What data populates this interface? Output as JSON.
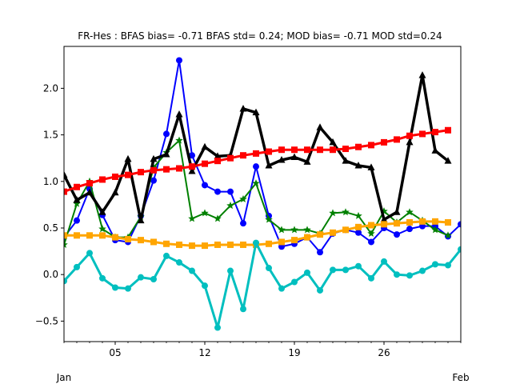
{
  "chart_data": {
    "type": "line",
    "title": "FR-Hes   : BFAS bias= -0.71 BFAS std= 0.24; MOD bias= -0.71 MOD std=0.24",
    "xlabel": "",
    "ylabel": "",
    "x": [
      1,
      2,
      3,
      4,
      5,
      6,
      7,
      8,
      9,
      10,
      11,
      12,
      13,
      14,
      15,
      16,
      17,
      18,
      19,
      20,
      21,
      22,
      23,
      24,
      25,
      26,
      27,
      28,
      29,
      30,
      31,
      32
    ],
    "xlim": [
      1,
      32
    ],
    "ylim": [
      -0.72,
      2.45
    ],
    "x_ticks": [
      {
        "x": 5,
        "label": "05"
      },
      {
        "x": 12,
        "label": "12"
      },
      {
        "x": 19,
        "label": "19"
      },
      {
        "x": 26,
        "label": "26"
      }
    ],
    "y_ticks": [
      {
        "y": -0.5,
        "label": "−0.5"
      },
      {
        "y": 0.0,
        "label": "0.0"
      },
      {
        "y": 0.5,
        "label": "0.5"
      },
      {
        "y": 1.0,
        "label": "1.0"
      },
      {
        "y": 1.5,
        "label": "1.5"
      },
      {
        "y": 2.0,
        "label": "2.0"
      }
    ],
    "month_labels": [
      {
        "x": 1,
        "label": "Jan"
      },
      {
        "x": 32,
        "label": "Feb"
      }
    ],
    "grid": false,
    "legend": "none",
    "series": [
      {
        "color": "#0000ff",
        "marker": "circle",
        "width": 2,
        "values": [
          0.4,
          0.58,
          0.92,
          0.64,
          0.37,
          0.35,
          0.63,
          1.01,
          1.51,
          2.3,
          1.28,
          0.96,
          0.89,
          0.89,
          0.55,
          1.16,
          0.63,
          0.3,
          0.33,
          0.4,
          0.24,
          0.44,
          0.48,
          0.45,
          0.35,
          0.5,
          0.43,
          0.49,
          0.52,
          0.52,
          0.41,
          0.54
        ]
      },
      {
        "color": "#008000",
        "marker": "star",
        "width": 2,
        "values": [
          0.32,
          0.76,
          1.0,
          0.49,
          0.4,
          0.4,
          0.62,
          1.15,
          1.31,
          1.44,
          0.6,
          0.66,
          0.6,
          0.74,
          0.81,
          0.98,
          0.59,
          0.48,
          0.48,
          0.48,
          0.44,
          0.66,
          0.67,
          0.63,
          0.44,
          0.68,
          0.56,
          0.67,
          0.58,
          0.48,
          0.42,
          null
        ]
      },
      {
        "color": "#000000",
        "marker": "triangle",
        "width": 3.5,
        "values": [
          1.07,
          0.8,
          0.88,
          0.67,
          0.88,
          1.24,
          0.58,
          1.24,
          1.29,
          1.72,
          1.11,
          1.37,
          1.27,
          1.28,
          1.78,
          1.74,
          1.17,
          1.23,
          1.26,
          1.21,
          1.58,
          1.42,
          1.22,
          1.17,
          1.15,
          0.59,
          0.67,
          1.42,
          2.14,
          1.33,
          1.22,
          null
        ]
      },
      {
        "color": "#ff0000",
        "marker": "square",
        "width": 3,
        "values": [
          0.89,
          0.94,
          0.98,
          1.02,
          1.05,
          1.07,
          1.1,
          1.12,
          1.13,
          1.14,
          1.16,
          1.19,
          1.22,
          1.25,
          1.28,
          1.3,
          1.32,
          1.34,
          1.34,
          1.34,
          1.34,
          1.34,
          1.35,
          1.37,
          1.39,
          1.42,
          1.45,
          1.49,
          1.51,
          1.53,
          1.55,
          null
        ]
      },
      {
        "color": "#ffa500",
        "marker": "square",
        "width": 3,
        "values": [
          0.42,
          0.42,
          0.42,
          0.42,
          0.4,
          0.38,
          0.37,
          0.35,
          0.33,
          0.32,
          0.31,
          0.31,
          0.32,
          0.32,
          0.32,
          0.32,
          0.33,
          0.35,
          0.37,
          0.4,
          0.43,
          0.45,
          0.48,
          0.51,
          0.53,
          0.54,
          0.55,
          0.56,
          0.57,
          0.57,
          0.56,
          null
        ]
      },
      {
        "color": "#00bfbf",
        "marker": "circle",
        "width": 3,
        "values": [
          -0.07,
          0.08,
          0.23,
          -0.04,
          -0.14,
          -0.15,
          -0.03,
          -0.05,
          0.2,
          0.13,
          0.04,
          -0.12,
          -0.57,
          0.04,
          -0.37,
          0.34,
          0.07,
          -0.15,
          -0.08,
          0.02,
          -0.17,
          0.05,
          0.05,
          0.09,
          -0.04,
          0.14,
          0.0,
          -0.01,
          0.04,
          0.11,
          0.1,
          0.27
        ]
      }
    ]
  }
}
